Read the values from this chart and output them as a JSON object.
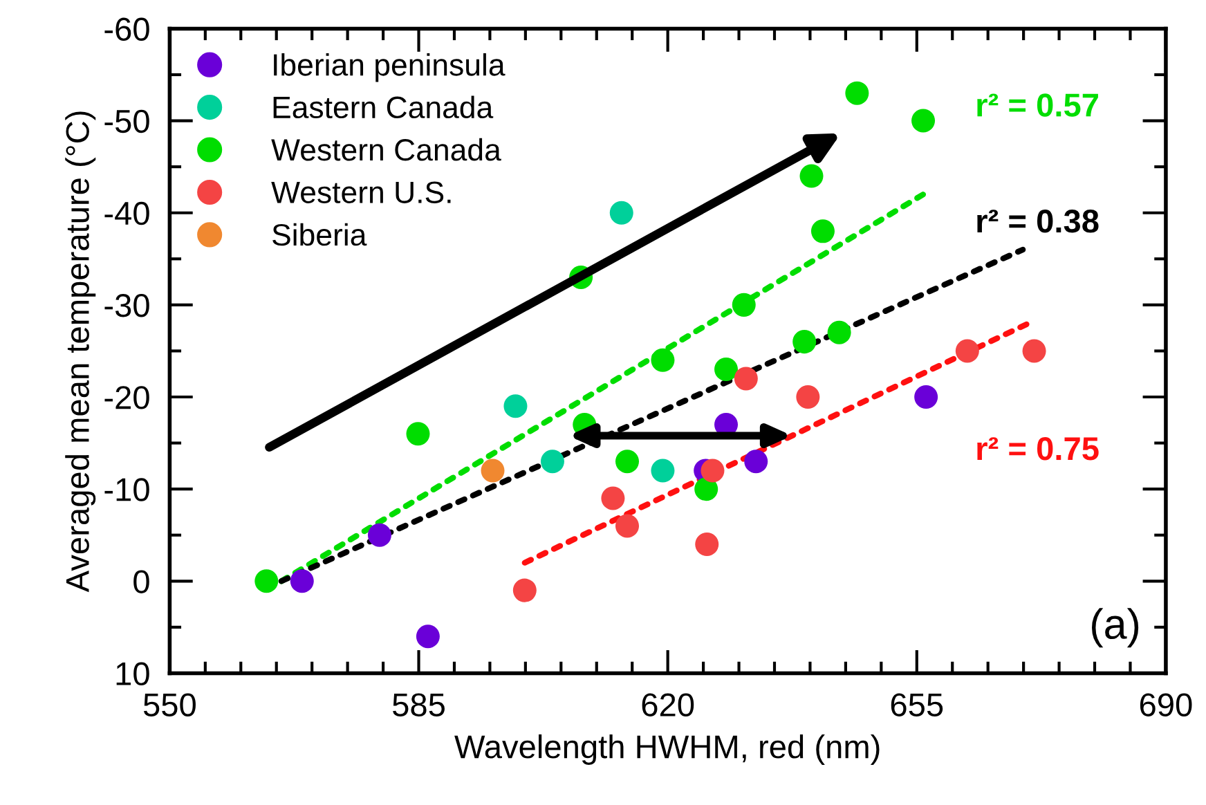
{
  "chart_data": {
    "type": "scatter",
    "xlabel": "Wavelength HWHM, red (nm)",
    "ylabel": "Averaged mean temperature (°C)",
    "xlim": [
      550,
      690
    ],
    "ylim": [
      10,
      -60
    ],
    "xticks": [
      550,
      {
        "value": 555,
        "label": null
      },
      {
        "value": 560,
        "label": null
      },
      {
        "value": 565,
        "label": null
      },
      {
        "value": 570,
        "label": null
      },
      {
        "value": 575,
        "label": null
      },
      {
        "value": 580,
        "label": null
      },
      585,
      {
        "value": 590,
        "label": null
      },
      {
        "value": 595,
        "label": null
      },
      {
        "value": 600,
        "label": null
      },
      {
        "value": 605,
        "label": null
      },
      {
        "value": 610,
        "label": null
      },
      {
        "value": 615,
        "label": null
      },
      620,
      {
        "value": 625,
        "label": null
      },
      {
        "value": 630,
        "label": null
      },
      {
        "value": 635,
        "label": null
      },
      {
        "value": 640,
        "label": null
      },
      {
        "value": 645,
        "label": null
      },
      {
        "value": 650,
        "label": null
      },
      655,
      {
        "value": 660,
        "label": null
      },
      {
        "value": 665,
        "label": null
      },
      {
        "value": 670,
        "label": null
      },
      {
        "value": 675,
        "label": null
      },
      {
        "value": 680,
        "label": null
      },
      {
        "value": 685,
        "label": null
      },
      690
    ],
    "yticks": [
      -60,
      {
        "value": -55,
        "label": null
      },
      -50,
      {
        "value": -45,
        "label": null
      },
      -40,
      {
        "value": -35,
        "label": null
      },
      -30,
      {
        "value": -25,
        "label": null
      },
      -20,
      {
        "value": -15,
        "label": null
      },
      -10,
      {
        "value": -5,
        "label": null
      },
      0,
      {
        "value": 5,
        "label": null
      },
      10
    ],
    "grid": false,
    "legend": "top left",
    "marker": "circle",
    "series": [
      {
        "name": "Iberian peninsula",
        "color": "#6a00d8",
        "x": [
          568.6,
          579.5,
          586.3,
          625.3,
          628.2,
          632.4,
          656.3
        ],
        "values": [
          0,
          -5,
          6,
          -12,
          -17,
          -13,
          -20
        ]
      },
      {
        "name": "Eastern Canada",
        "color": "#00d09a",
        "x": [
          598.6,
          603.8,
          613.5,
          619.3
        ],
        "values": [
          -19,
          -13,
          -40,
          -12
        ]
      },
      {
        "name": "Western Canada",
        "color": "#00dd00",
        "x": [
          563.6,
          584.9,
          607.8,
          608.3,
          614.3,
          619.3,
          625.4,
          628.2,
          630.7,
          639.2,
          640.2,
          641.8,
          644.1,
          646.6,
          655.9
        ],
        "values": [
          0,
          -16,
          -33,
          -17,
          -13,
          -24,
          -10,
          -23,
          -30,
          -26,
          -44,
          -38,
          -27,
          -53,
          -50
        ]
      },
      {
        "name": "Western U.S.",
        "color": "#f44444",
        "x": [
          599.9,
          612.3,
          614.3,
          625.5,
          626.3,
          631.0,
          639.7,
          662.1,
          671.5
        ],
        "values": [
          1,
          -9,
          -6,
          -4,
          -12,
          -22,
          -20,
          -25,
          -25
        ]
      },
      {
        "name": "Siberia",
        "color": "#f08830",
        "x": [
          595.4
        ],
        "values": [
          -12
        ]
      },
      {
        "type": "line",
        "line_style": "dotted",
        "marker": "none",
        "color": "#00dd00",
        "x": [
          565.7,
          655.9
        ],
        "values": [
          0,
          -42
        ]
      },
      {
        "type": "line",
        "line_style": "dotted",
        "marker": "none",
        "color": "#000000",
        "x": [
          565.7,
          669.9
        ],
        "values": [
          0,
          -36
        ]
      },
      {
        "type": "line",
        "line_style": "dotted",
        "marker": "none",
        "color": "#ff1010",
        "x": [
          599.9,
          670.7
        ],
        "values": [
          -2,
          -28
        ]
      }
    ],
    "annotations": [
      "r² = 0.57",
      "r² = 0.38",
      "r² = 0.75",
      "(a)"
    ]
  }
}
